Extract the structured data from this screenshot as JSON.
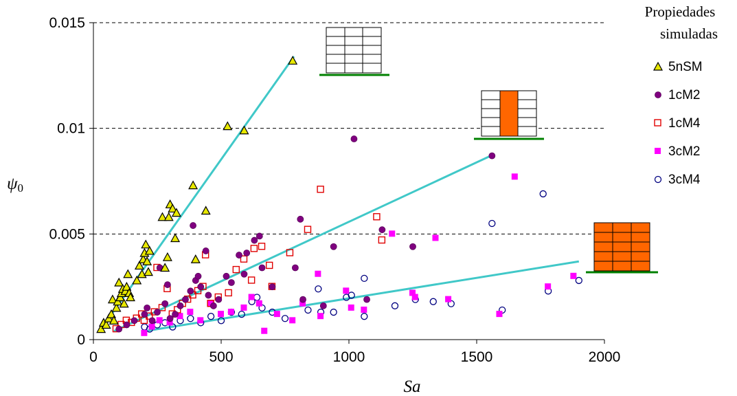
{
  "chart_data": {
    "type": "scatter",
    "xlabel": "Sa",
    "ylabel": "ψ0",
    "ylabel_main": "ψ",
    "ylabel_sub": "0",
    "xlim": [
      0,
      2000
    ],
    "ylim": [
      0,
      0.015
    ],
    "x_ticks": [
      0,
      500,
      1000,
      1500,
      2000
    ],
    "x_tick_labels": [
      "0",
      "500",
      "1000",
      "1500",
      "2000"
    ],
    "y_ticks": [
      0,
      0.005,
      0.01,
      0.015
    ],
    "y_tick_labels": [
      "0",
      "0.005",
      "0.01",
      "0.015"
    ],
    "grid": "horizontal-dashed",
    "legend_title": [
      "Propiedades",
      "simuladas"
    ],
    "legend_position": "right",
    "colors": {
      "trendline": "#40C8C8",
      "5nSM": "#E8E800",
      "1cM2": "#800080",
      "1cM4": "#E00000",
      "3cM2": "#FF00FF",
      "3cM4": "#000080",
      "ground": "#008000",
      "infill": "#FF6600"
    },
    "series": [
      {
        "name": "5nSM",
        "marker": "triangle",
        "points": [
          [
            30,
            0.0005
          ],
          [
            40,
            0.0008
          ],
          [
            50,
            0.0007
          ],
          [
            60,
            0.001
          ],
          [
            70,
            0.0012
          ],
          [
            75,
            0.0019
          ],
          [
            80,
            0.0009
          ],
          [
            90,
            0.0015
          ],
          [
            95,
            0.0018
          ],
          [
            100,
            0.0027
          ],
          [
            105,
            0.002
          ],
          [
            110,
            0.0022
          ],
          [
            115,
            0.0024
          ],
          [
            120,
            0.0017
          ],
          [
            125,
            0.0023
          ],
          [
            130,
            0.0025
          ],
          [
            135,
            0.0031
          ],
          [
            140,
            0.0022
          ],
          [
            145,
            0.002
          ],
          [
            170,
            0.0028
          ],
          [
            180,
            0.0035
          ],
          [
            190,
            0.0031
          ],
          [
            195,
            0.0038
          ],
          [
            200,
            0.0041
          ],
          [
            205,
            0.0045
          ],
          [
            210,
            0.0037
          ],
          [
            215,
            0.0032
          ],
          [
            220,
            0.0042
          ],
          [
            270,
            0.0058
          ],
          [
            280,
            0.0034
          ],
          [
            290,
            0.0039
          ],
          [
            295,
            0.0058
          ],
          [
            300,
            0.0064
          ],
          [
            310,
            0.0062
          ],
          [
            320,
            0.0048
          ],
          [
            325,
            0.006
          ],
          [
            390,
            0.0073
          ],
          [
            400,
            0.0038
          ],
          [
            440,
            0.0061
          ],
          [
            525,
            0.0101
          ],
          [
            590,
            0.0099
          ],
          [
            780,
            0.0132
          ]
        ]
      },
      {
        "name": "1cM2",
        "marker": "filled-circle",
        "points": [
          [
            100,
            0.0005
          ],
          [
            130,
            0.0007
          ],
          [
            160,
            0.0009
          ],
          [
            200,
            0.0012
          ],
          [
            210,
            0.0015
          ],
          [
            230,
            0.0009
          ],
          [
            250,
            0.0013
          ],
          [
            260,
            0.0034
          ],
          [
            280,
            0.0017
          ],
          [
            290,
            0.0026
          ],
          [
            300,
            0.001
          ],
          [
            320,
            0.0012
          ],
          [
            340,
            0.0016
          ],
          [
            360,
            0.0019
          ],
          [
            380,
            0.0023
          ],
          [
            390,
            0.0054
          ],
          [
            400,
            0.0028
          ],
          [
            410,
            0.003
          ],
          [
            420,
            0.0025
          ],
          [
            440,
            0.0042
          ],
          [
            450,
            0.0021
          ],
          [
            470,
            0.0016
          ],
          [
            490,
            0.0019
          ],
          [
            520,
            0.003
          ],
          [
            540,
            0.0027
          ],
          [
            570,
            0.004
          ],
          [
            590,
            0.0031
          ],
          [
            600,
            0.0041
          ],
          [
            630,
            0.0047
          ],
          [
            650,
            0.0049
          ],
          [
            660,
            0.0034
          ],
          [
            700,
            0.0025
          ],
          [
            790,
            0.0034
          ],
          [
            810,
            0.0057
          ],
          [
            820,
            0.0019
          ],
          [
            900,
            0.0016
          ],
          [
            940,
            0.0044
          ],
          [
            1020,
            0.0095
          ],
          [
            1070,
            0.0019
          ],
          [
            1130,
            0.0052
          ],
          [
            1250,
            0.0044
          ],
          [
            1560,
            0.0087
          ]
        ]
      },
      {
        "name": "1cM4",
        "marker": "open-square",
        "points": [
          [
            90,
            0.0005
          ],
          [
            110,
            0.0007
          ],
          [
            130,
            0.0009
          ],
          [
            150,
            0.0008
          ],
          [
            170,
            0.001
          ],
          [
            190,
            0.0012
          ],
          [
            200,
            0.0009
          ],
          [
            220,
            0.0011
          ],
          [
            240,
            0.0013
          ],
          [
            250,
            0.0034
          ],
          [
            270,
            0.0015
          ],
          [
            290,
            0.0024
          ],
          [
            310,
            0.0012
          ],
          [
            330,
            0.0014
          ],
          [
            350,
            0.0017
          ],
          [
            370,
            0.0019
          ],
          [
            390,
            0.0021
          ],
          [
            410,
            0.0023
          ],
          [
            430,
            0.0025
          ],
          [
            440,
            0.004
          ],
          [
            460,
            0.0017
          ],
          [
            490,
            0.002
          ],
          [
            530,
            0.0022
          ],
          [
            560,
            0.0033
          ],
          [
            590,
            0.0038
          ],
          [
            620,
            0.0028
          ],
          [
            630,
            0.0043
          ],
          [
            660,
            0.0044
          ],
          [
            690,
            0.0035
          ],
          [
            700,
            0.0025
          ],
          [
            770,
            0.0041
          ],
          [
            890,
            0.0071
          ],
          [
            840,
            0.0052
          ],
          [
            1110,
            0.0058
          ],
          [
            1130,
            0.0047
          ]
        ]
      },
      {
        "name": "3cM2",
        "marker": "filled-square",
        "points": [
          [
            200,
            0.0003
          ],
          [
            230,
            0.0006
          ],
          [
            260,
            0.0009
          ],
          [
            300,
            0.0008
          ],
          [
            340,
            0.0011
          ],
          [
            380,
            0.0013
          ],
          [
            420,
            0.0009
          ],
          [
            460,
            0.0017
          ],
          [
            500,
            0.0012
          ],
          [
            540,
            0.0013
          ],
          [
            590,
            0.0015
          ],
          [
            620,
            0.002
          ],
          [
            650,
            0.0017
          ],
          [
            670,
            0.0004
          ],
          [
            720,
            0.0012
          ],
          [
            780,
            0.0009
          ],
          [
            820,
            0.0017
          ],
          [
            880,
            0.0031
          ],
          [
            890,
            0.0011
          ],
          [
            990,
            0.0023
          ],
          [
            1010,
            0.0015
          ],
          [
            1060,
            0.0014
          ],
          [
            1170,
            0.005
          ],
          [
            1250,
            0.0022
          ],
          [
            1260,
            0.002
          ],
          [
            1340,
            0.0048
          ],
          [
            1390,
            0.0019
          ],
          [
            1590,
            0.0012
          ],
          [
            1650,
            0.0077
          ],
          [
            1780,
            0.0025
          ],
          [
            1880,
            0.003
          ]
        ]
      },
      {
        "name": "3cM4",
        "marker": "open-circle",
        "points": [
          [
            200,
            0.0006
          ],
          [
            220,
            0.0005
          ],
          [
            250,
            0.0007
          ],
          [
            280,
            0.0008
          ],
          [
            310,
            0.0006
          ],
          [
            340,
            0.0009
          ],
          [
            380,
            0.001
          ],
          [
            420,
            0.0008
          ],
          [
            460,
            0.0011
          ],
          [
            500,
            0.0009
          ],
          [
            540,
            0.0013
          ],
          [
            580,
            0.0012
          ],
          [
            620,
            0.0018
          ],
          [
            640,
            0.002
          ],
          [
            660,
            0.0015
          ],
          [
            700,
            0.0013
          ],
          [
            750,
            0.001
          ],
          [
            840,
            0.0014
          ],
          [
            880,
            0.0024
          ],
          [
            890,
            0.0013
          ],
          [
            940,
            0.0013
          ],
          [
            990,
            0.002
          ],
          [
            1010,
            0.0021
          ],
          [
            1060,
            0.0029
          ],
          [
            1060,
            0.0011
          ],
          [
            1180,
            0.0016
          ],
          [
            1260,
            0.0019
          ],
          [
            1330,
            0.0018
          ],
          [
            1400,
            0.0017
          ],
          [
            1560,
            0.0055
          ],
          [
            1600,
            0.0014
          ],
          [
            1760,
            0.0069
          ],
          [
            1780,
            0.0023
          ],
          [
            1900,
            0.0028
          ]
        ]
      }
    ],
    "trendlines": [
      {
        "x": [
          30,
          785
        ],
        "y": [
          0.0005,
          0.0134
        ]
      },
      {
        "x": [
          80,
          1555
        ],
        "y": [
          0.0004,
          0.0087
        ]
      },
      {
        "x": [
          200,
          1900
        ],
        "y": [
          0.0004,
          0.0037
        ]
      }
    ],
    "annotations": [
      {
        "type": "building-icon",
        "description": "frame-no-infill",
        "x": 880,
        "y": 0.0129
      },
      {
        "type": "building-icon",
        "description": "frame-central-infill",
        "x": 1625,
        "y": 0.0099
      },
      {
        "type": "building-icon",
        "description": "frame-full-infill",
        "x": 2100,
        "y": 0.0033
      }
    ]
  }
}
